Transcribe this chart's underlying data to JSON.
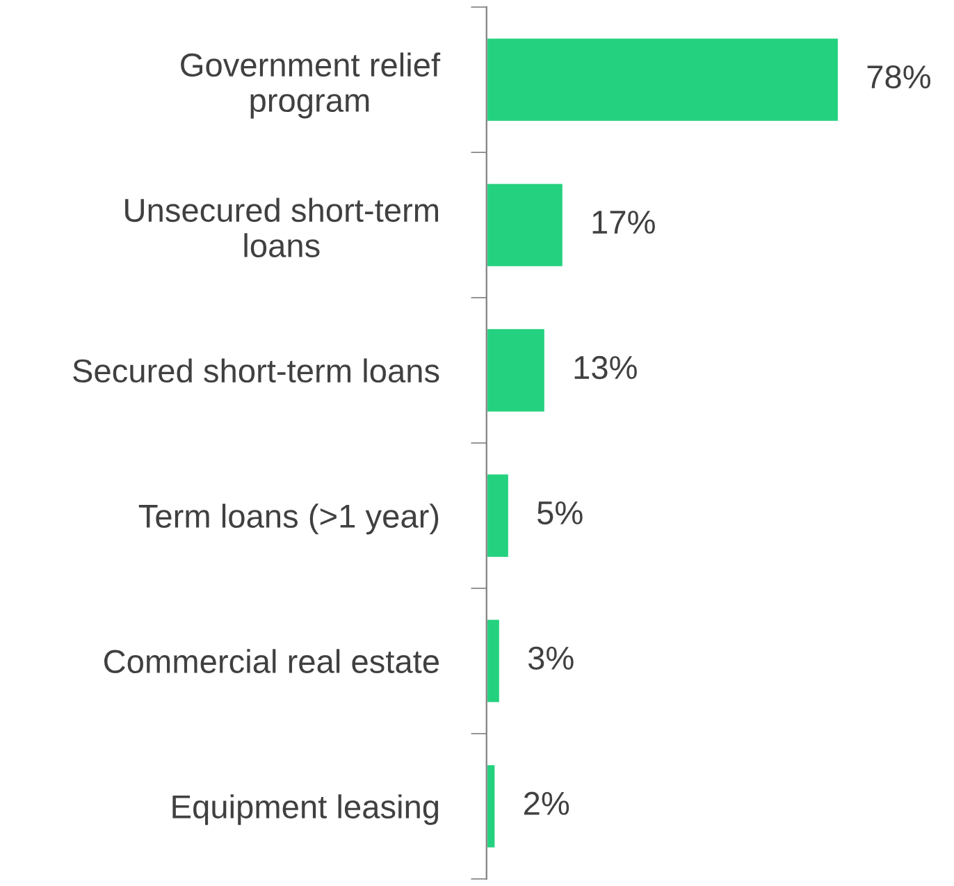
{
  "chart_data": {
    "type": "bar",
    "orientation": "horizontal",
    "categories": [
      "Government relief\nprogram",
      "Unsecured short-term\nloans",
      "Secured short-term loans",
      "Term loans (>1 year)",
      "Commercial real estate",
      "Equipment leasing"
    ],
    "values": [
      78,
      17,
      13,
      5,
      3,
      2
    ],
    "value_labels": [
      "78%",
      "17%",
      "13%",
      "5%",
      "3%",
      "2%"
    ],
    "color": "#24d17e",
    "grid": false,
    "legend": false,
    "tick_labels": "y"
  }
}
